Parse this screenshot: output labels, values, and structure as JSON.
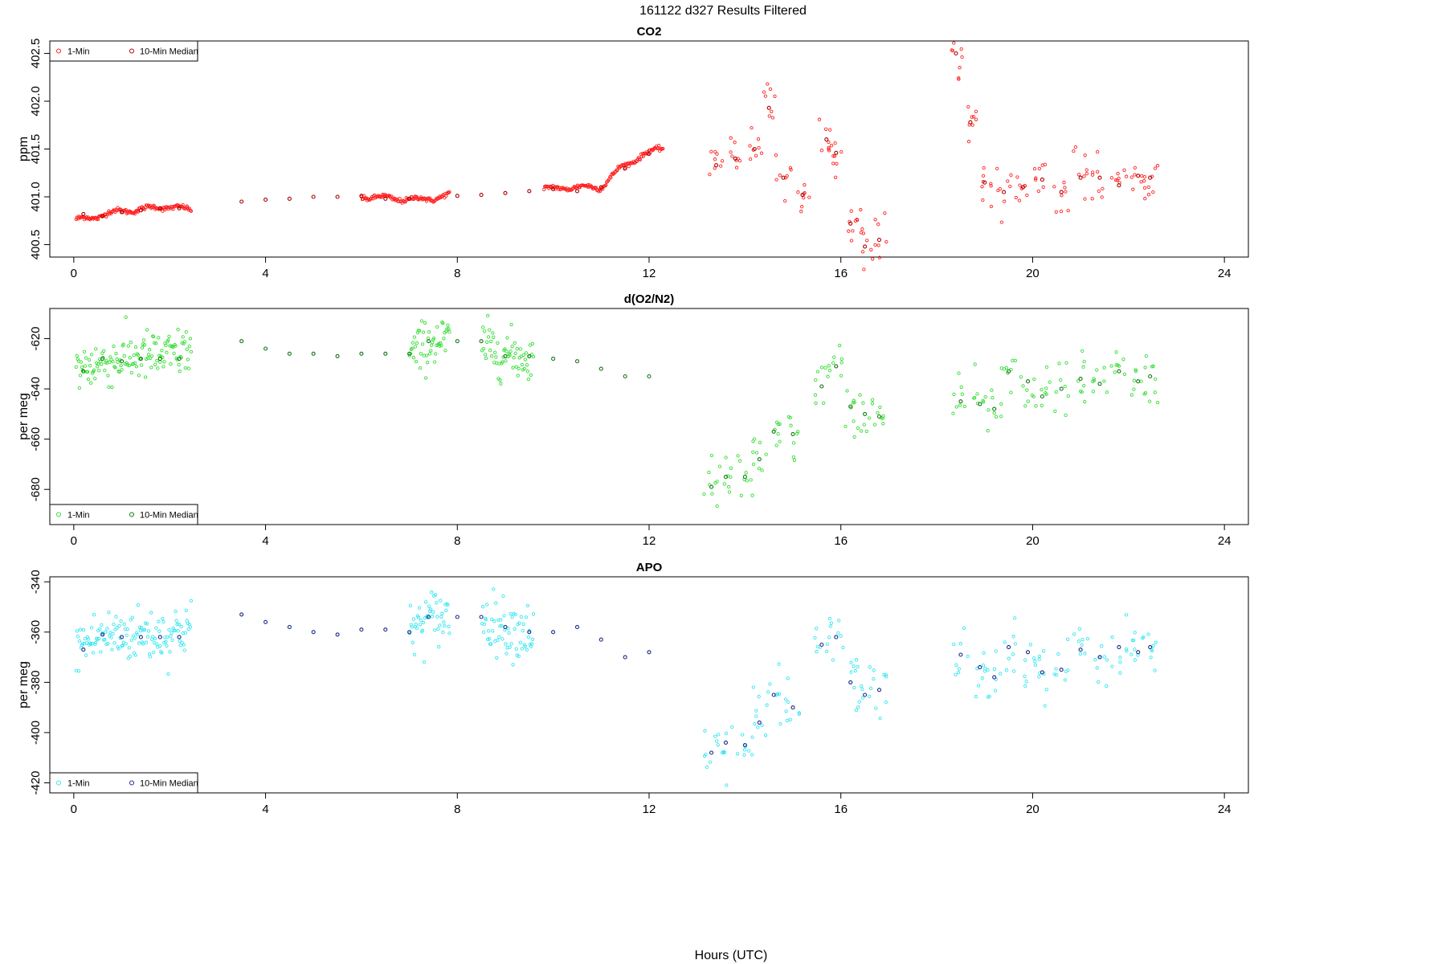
{
  "page": {
    "title": "161122    d327    Results Filtered",
    "xlabel": "Hours (UTC)"
  },
  "legend_labels": {
    "one_min": "1-Min",
    "median": "10-Min Median"
  },
  "chart_data": [
    {
      "type": "scatter",
      "title": "CO2",
      "ylabel": "ppm",
      "xlim": [
        -0.5,
        24.5
      ],
      "ylim": [
        400.37,
        402.63
      ],
      "xticks": [
        0,
        4,
        8,
        12,
        16,
        20,
        24
      ],
      "yticks": [
        400.5,
        401.0,
        401.5,
        402.0,
        402.5
      ],
      "ytick_labels": [
        "400.5",
        "401.0",
        "401.5",
        "402.0",
        "402.5"
      ],
      "legend_position": "top-left",
      "colors": {
        "one_min": "#ff2020",
        "median": "#aa0000"
      },
      "one_min_ctrl": [
        [
          0.05,
          400.76
        ],
        [
          0.4,
          400.78
        ],
        [
          0.7,
          400.83
        ],
        [
          1.2,
          400.86
        ],
        [
          1.6,
          400.88
        ],
        [
          2.0,
          400.9
        ],
        [
          2.45,
          400.86
        ],
        [
          3.3,
          400.94
        ],
        [
          4.0,
          400.97
        ],
        [
          5.0,
          401.0
        ],
        [
          6.0,
          401.0
        ],
        [
          6.5,
          400.99
        ],
        [
          7.0,
          400.97
        ],
        [
          7.45,
          400.98
        ],
        [
          7.85,
          401.02
        ],
        [
          8.5,
          401.02
        ],
        [
          9.2,
          401.06
        ],
        [
          9.8,
          401.08
        ],
        [
          10.4,
          401.1
        ],
        [
          11.0,
          401.1
        ],
        [
          11.4,
          401.3
        ],
        [
          11.8,
          401.42
        ],
        [
          12.3,
          401.52
        ]
      ],
      "median": [
        [
          0.2,
          400.82
        ],
        [
          0.6,
          400.8
        ],
        [
          1.0,
          400.84
        ],
        [
          1.4,
          400.86
        ],
        [
          1.8,
          400.88
        ],
        [
          2.2,
          400.88
        ],
        [
          3.5,
          400.95
        ],
        [
          4.0,
          400.97
        ],
        [
          4.5,
          400.98
        ],
        [
          5.0,
          401.0
        ],
        [
          5.5,
          401.0
        ],
        [
          6.0,
          401.01
        ],
        [
          6.5,
          400.98
        ],
        [
          7.0,
          400.98
        ],
        [
          8.0,
          401.01
        ],
        [
          8.5,
          401.02
        ],
        [
          9.0,
          401.04
        ],
        [
          9.5,
          401.06
        ],
        [
          10.0,
          401.08
        ],
        [
          10.5,
          401.06
        ],
        [
          11.0,
          401.1
        ],
        [
          11.5,
          401.3
        ],
        [
          12.0,
          401.45
        ],
        [
          13.4,
          401.33
        ],
        [
          13.8,
          401.4
        ],
        [
          14.2,
          401.5
        ],
        [
          14.5,
          401.93
        ],
        [
          14.8,
          401.2
        ],
        [
          15.2,
          401.02
        ],
        [
          15.7,
          401.6
        ],
        [
          15.9,
          401.46
        ],
        [
          16.2,
          400.72
        ],
        [
          16.5,
          400.48
        ],
        [
          16.8,
          400.55
        ],
        [
          18.4,
          402.5
        ],
        [
          18.7,
          401.78
        ],
        [
          19.0,
          401.15
        ],
        [
          19.4,
          401.05
        ],
        [
          19.8,
          401.1
        ],
        [
          20.2,
          401.18
        ],
        [
          20.6,
          401.05
        ],
        [
          21.0,
          401.2
        ],
        [
          21.4,
          401.2
        ],
        [
          21.8,
          401.12
        ],
        [
          22.2,
          401.22
        ],
        [
          22.45,
          401.2
        ]
      ]
    },
    {
      "type": "scatter",
      "title": "d(O2/N2)",
      "ylabel": "per meg",
      "xlim": [
        -0.5,
        24.5
      ],
      "ylim": [
        -694,
        -608
      ],
      "xticks": [
        0,
        4,
        8,
        12,
        16,
        20,
        24
      ],
      "yticks": [
        -680,
        -660,
        -640,
        -620
      ],
      "ytick_labels": [
        "-680",
        "-660",
        "-640",
        "-620"
      ],
      "legend_position": "bottom-left",
      "colors": {
        "one_min": "#33dd33",
        "median": "#117711"
      },
      "one_min_ctrl": [
        [
          0.05,
          -632
        ],
        [
          0.5,
          -630
        ],
        [
          1.0,
          -628
        ],
        [
          1.5,
          -627
        ],
        [
          2.0,
          -627
        ],
        [
          2.45,
          -624
        ],
        [
          3.3,
          -621
        ],
        [
          4.0,
          -623
        ],
        [
          5.0,
          -627
        ],
        [
          6.0,
          -625
        ],
        [
          7.0,
          -627
        ],
        [
          7.45,
          -621
        ],
        [
          7.85,
          -621
        ],
        [
          8.5,
          -622
        ],
        [
          9.0,
          -626
        ],
        [
          9.6,
          -628
        ],
        [
          10.3,
          -630
        ],
        [
          11.0,
          -633
        ],
        [
          11.7,
          -638
        ],
        [
          12.3,
          -630
        ]
      ],
      "median": [
        [
          0.2,
          -633
        ],
        [
          0.6,
          -628
        ],
        [
          1.0,
          -629
        ],
        [
          1.4,
          -628
        ],
        [
          1.8,
          -628
        ],
        [
          2.2,
          -628
        ],
        [
          3.5,
          -621
        ],
        [
          4.0,
          -624
        ],
        [
          4.5,
          -626
        ],
        [
          5.0,
          -626
        ],
        [
          5.5,
          -627
        ],
        [
          6.0,
          -626
        ],
        [
          6.5,
          -626
        ],
        [
          7.0,
          -626
        ],
        [
          7.4,
          -621
        ],
        [
          8.0,
          -621
        ],
        [
          8.5,
          -621
        ],
        [
          9.0,
          -627
        ],
        [
          9.5,
          -627
        ],
        [
          10.0,
          -628
        ],
        [
          10.5,
          -629
        ],
        [
          11.0,
          -632
        ],
        [
          11.5,
          -635
        ],
        [
          12.0,
          -635
        ],
        [
          13.3,
          -679
        ],
        [
          13.6,
          -675
        ],
        [
          14.0,
          -675
        ],
        [
          14.3,
          -668
        ],
        [
          14.6,
          -657
        ],
        [
          15.0,
          -658
        ],
        [
          15.6,
          -639
        ],
        [
          15.9,
          -631
        ],
        [
          16.2,
          -647
        ],
        [
          16.5,
          -650
        ],
        [
          16.8,
          -651
        ],
        [
          18.5,
          -645
        ],
        [
          18.9,
          -646
        ],
        [
          19.2,
          -648
        ],
        [
          19.5,
          -633
        ],
        [
          19.9,
          -637
        ],
        [
          20.2,
          -643
        ],
        [
          20.6,
          -640
        ],
        [
          21.0,
          -636
        ],
        [
          21.4,
          -638
        ],
        [
          21.8,
          -633
        ],
        [
          22.2,
          -637
        ],
        [
          22.45,
          -635
        ]
      ]
    },
    {
      "type": "scatter",
      "title": "APO",
      "ylabel": "per meg",
      "xlim": [
        -0.5,
        24.5
      ],
      "ylim": [
        -424,
        -338
      ],
      "xticks": [
        0,
        4,
        8,
        12,
        16,
        20,
        24
      ],
      "yticks": [
        -420,
        -400,
        -380,
        -360,
        -340
      ],
      "ytick_labels": [
        "-420",
        "-400",
        "-380",
        "-360",
        "-340"
      ],
      "legend_position": "bottom-left",
      "colors": {
        "one_min": "#33e6f0",
        "median": "#1a2a8a"
      },
      "one_min_ctrl": [
        [
          0.05,
          -366
        ],
        [
          0.5,
          -362
        ],
        [
          1.0,
          -361
        ],
        [
          1.5,
          -361
        ],
        [
          2.0,
          -361
        ],
        [
          2.45,
          -357
        ],
        [
          3.3,
          -353
        ],
        [
          4.0,
          -357
        ],
        [
          5.0,
          -361
        ],
        [
          6.0,
          -360
        ],
        [
          7.0,
          -360
        ],
        [
          7.45,
          -354
        ],
        [
          7.85,
          -354
        ],
        [
          8.5,
          -354
        ],
        [
          9.0,
          -358
        ],
        [
          9.6,
          -360
        ],
        [
          10.3,
          -360
        ],
        [
          11.0,
          -363
        ],
        [
          11.7,
          -370
        ],
        [
          12.3,
          -357
        ]
      ],
      "median": [
        [
          0.2,
          -367
        ],
        [
          0.6,
          -361
        ],
        [
          1.0,
          -362
        ],
        [
          1.4,
          -362
        ],
        [
          1.8,
          -362
        ],
        [
          2.2,
          -362
        ],
        [
          3.5,
          -353
        ],
        [
          4.0,
          -356
        ],
        [
          4.5,
          -358
        ],
        [
          5.0,
          -360
        ],
        [
          5.5,
          -361
        ],
        [
          6.0,
          -359
        ],
        [
          6.5,
          -359
        ],
        [
          7.0,
          -360
        ],
        [
          7.4,
          -354
        ],
        [
          8.0,
          -354
        ],
        [
          8.5,
          -354
        ],
        [
          9.0,
          -358
        ],
        [
          9.5,
          -360
        ],
        [
          10.0,
          -360
        ],
        [
          10.5,
          -358
        ],
        [
          11.0,
          -363
        ],
        [
          11.5,
          -370
        ],
        [
          12.0,
          -368
        ],
        [
          13.3,
          -408
        ],
        [
          13.6,
          -404
        ],
        [
          14.0,
          -405
        ],
        [
          14.3,
          -396
        ],
        [
          14.6,
          -385
        ],
        [
          15.0,
          -390
        ],
        [
          15.6,
          -365
        ],
        [
          15.9,
          -362
        ],
        [
          16.2,
          -380
        ],
        [
          16.5,
          -385
        ],
        [
          16.8,
          -383
        ],
        [
          18.5,
          -369
        ],
        [
          18.9,
          -374
        ],
        [
          19.2,
          -378
        ],
        [
          19.5,
          -366
        ],
        [
          19.9,
          -368
        ],
        [
          20.2,
          -376
        ],
        [
          20.6,
          -375
        ],
        [
          21.0,
          -367
        ],
        [
          21.4,
          -370
        ],
        [
          21.8,
          -366
        ],
        [
          22.2,
          -368
        ],
        [
          22.45,
          -366
        ]
      ]
    }
  ]
}
